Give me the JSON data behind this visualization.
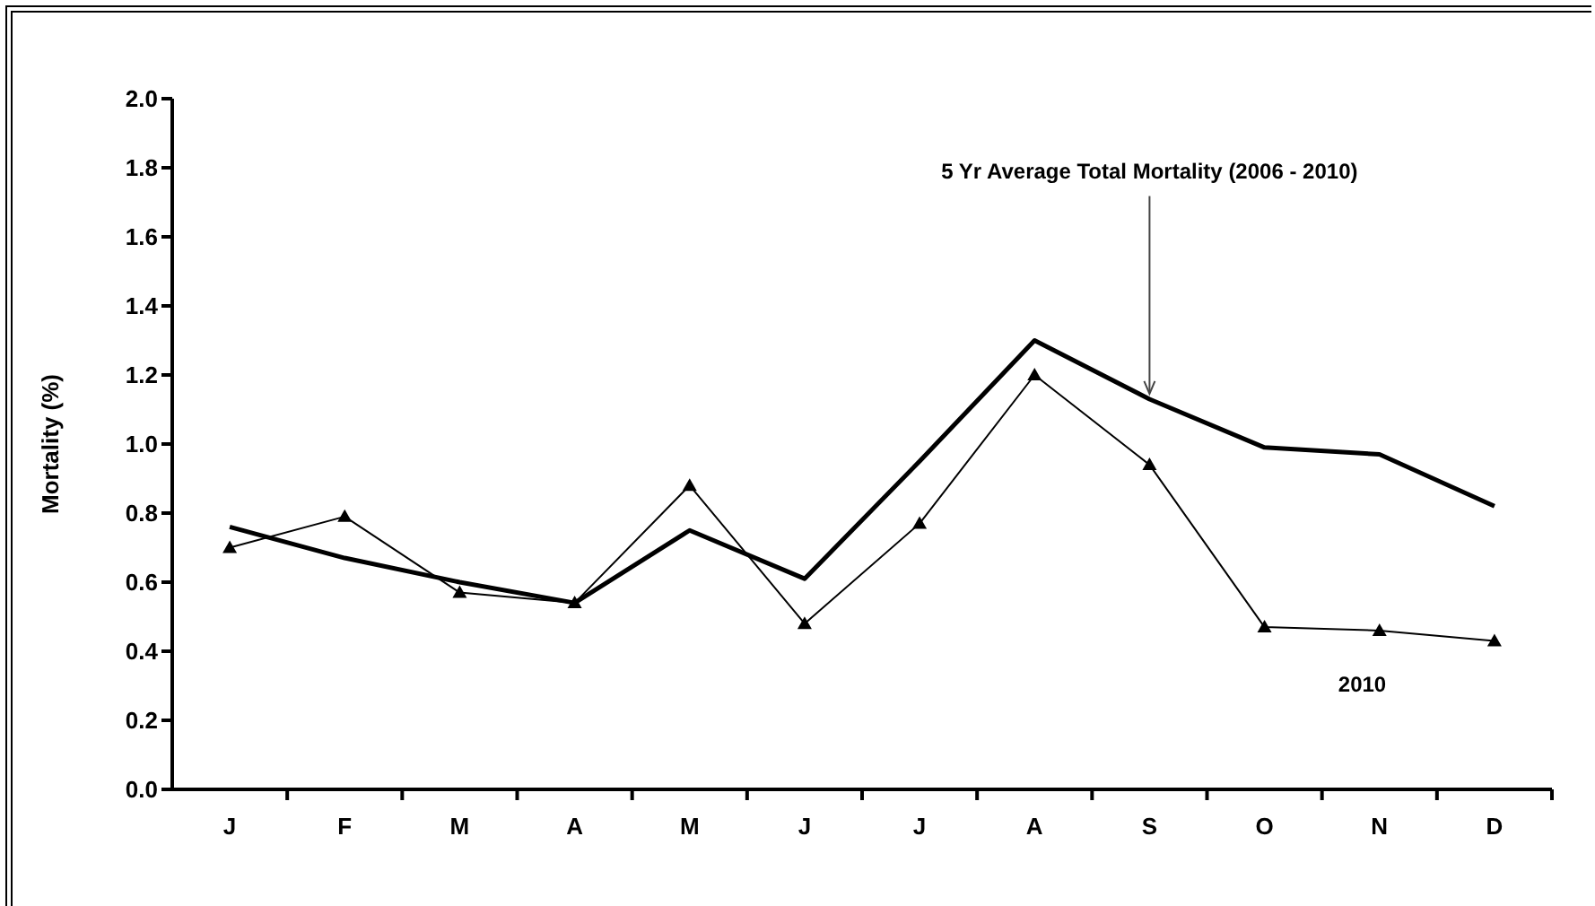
{
  "chart_data": {
    "type": "line",
    "ylabel": "Mortality (%)",
    "categories": [
      "J",
      "F",
      "M",
      "A",
      "M",
      "J",
      "J",
      "A",
      "S",
      "O",
      "N",
      "D"
    ],
    "series": [
      {
        "name": "5 Yr Average Total Mortality (2006 - 2010)",
        "color": "#000000",
        "marker": "none",
        "values": [
          0.76,
          0.67,
          0.6,
          0.54,
          0.75,
          0.61,
          0.95,
          1.3,
          1.13,
          0.99,
          0.97,
          0.82
        ]
      },
      {
        "name": "2010",
        "color": "#000000",
        "marker": "triangle",
        "values": [
          0.7,
          0.79,
          0.57,
          0.54,
          0.88,
          0.48,
          0.77,
          1.2,
          0.94,
          0.47,
          0.46,
          0.43
        ]
      }
    ],
    "ylim": [
      0,
      2.0
    ],
    "yticks": [
      {
        "value": 0,
        "label": "0.0"
      },
      0.2,
      0.4,
      0.6,
      0.8,
      {
        "value": 1,
        "label": "1.0"
      },
      1.2,
      1.4,
      1.6,
      1.8,
      {
        "value": 2,
        "label": "2.0"
      }
    ],
    "grid": false,
    "legend": false,
    "line_style": "solid"
  }
}
